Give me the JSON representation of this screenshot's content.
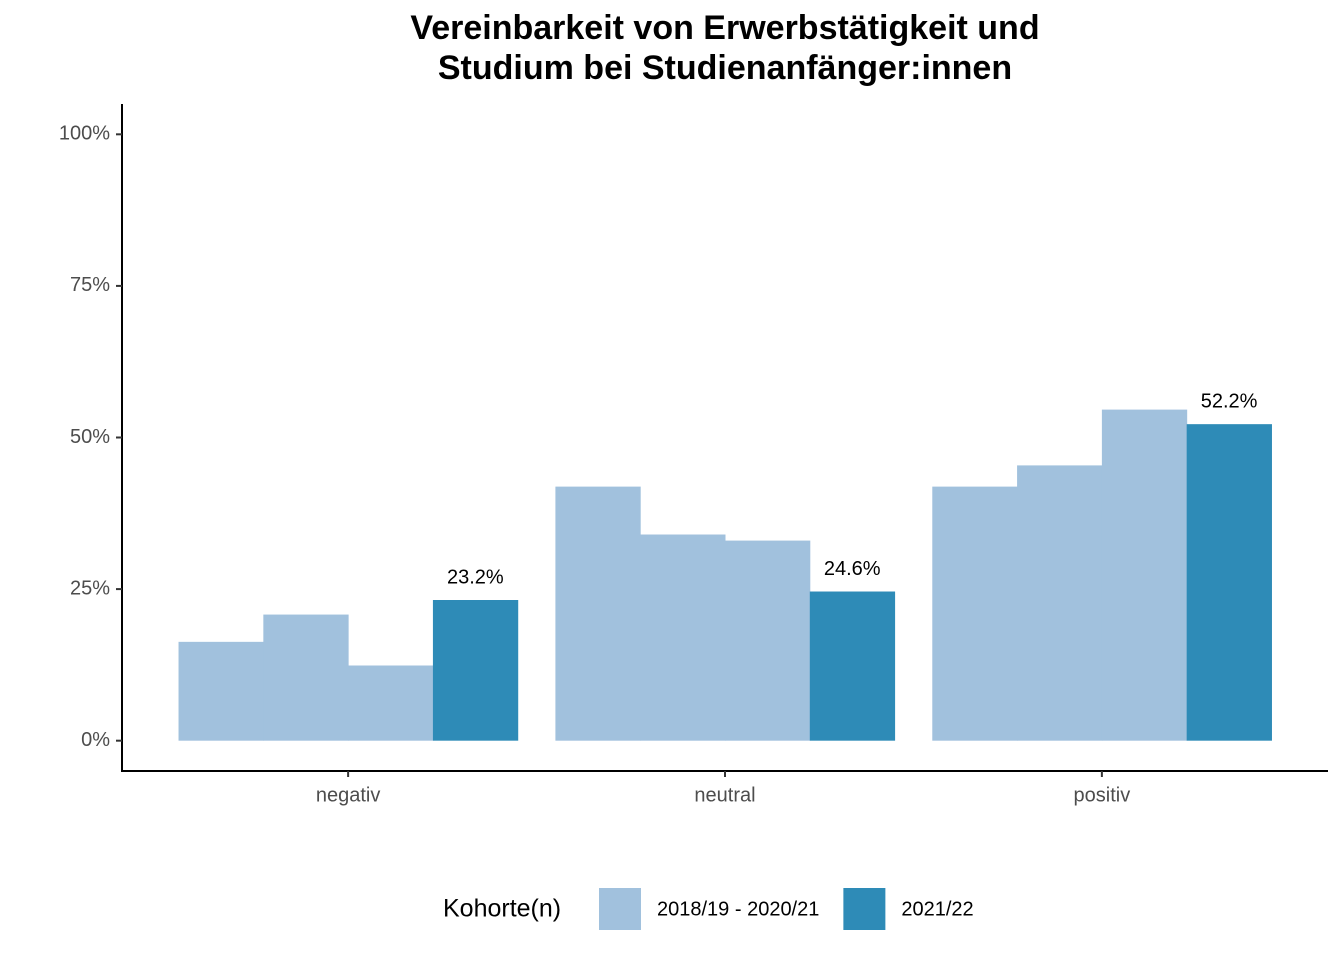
{
  "chart_data": {
    "type": "grouped_bar",
    "title": [
      "Vereinbarkeit von Erwerbstätigkeit und",
      "Studium bei Studienanfänger:innen"
    ],
    "categories": [
      "negativ",
      "neutral",
      "positiv"
    ],
    "series": [
      {
        "name": "2018/19 - 2020/21",
        "color": "#a1c1dd",
        "values": [
          [
            16.3,
            20.8,
            12.4
          ],
          [
            41.9,
            34.0,
            33.0
          ],
          [
            41.9,
            45.4,
            54.6
          ]
        ]
      },
      {
        "name": "2021/22",
        "color": "#2e8bb7",
        "values": [
          23.2,
          24.6,
          52.2
        ],
        "value_labels": [
          "23.2%",
          "24.6%",
          "52.2%"
        ]
      }
    ],
    "ylim": [
      -5,
      105
    ],
    "yticks": [
      {
        "value": 0,
        "label": "0%"
      },
      {
        "value": 25,
        "label": "25%"
      },
      {
        "value": 50,
        "label": "50%"
      },
      {
        "value": 75,
        "label": "75%"
      },
      {
        "value": 100,
        "label": "100%"
      }
    ],
    "legend": {
      "title": "Kohorte(n)",
      "position": "bottom"
    },
    "grid": false
  }
}
